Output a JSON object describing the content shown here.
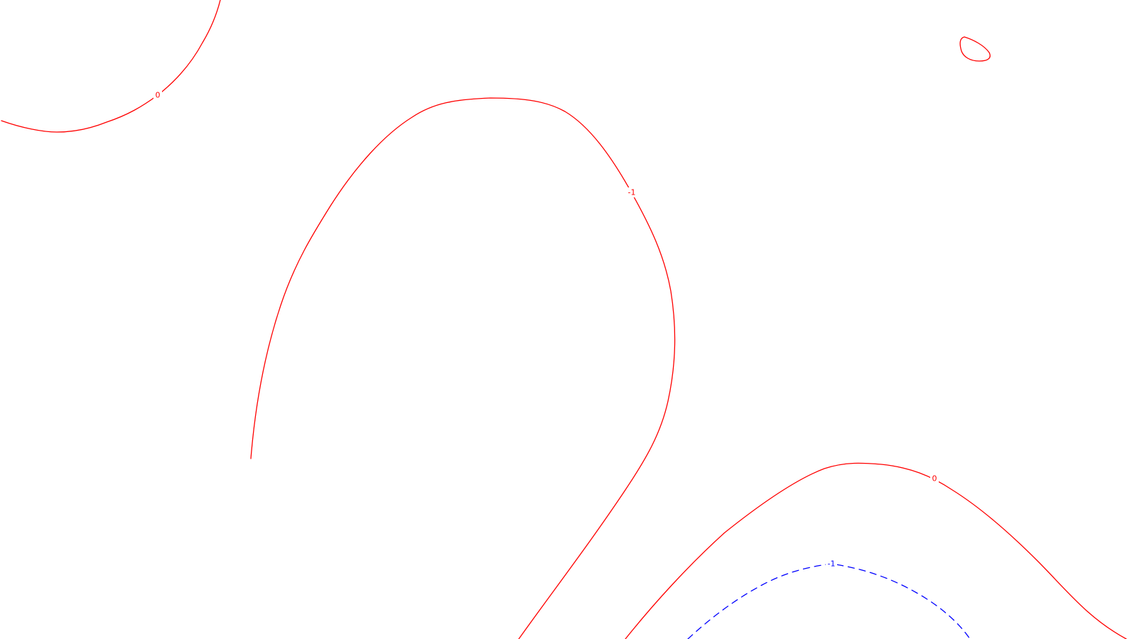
{
  "map": {
    "background": "#ffffff",
    "styles": {
      "positive": {
        "color": "#ff0000",
        "dash": "solid"
      },
      "negative": {
        "color": "#0000ff",
        "dash": "dashed"
      }
    },
    "contours": [
      {
        "id": "contour-0-top-left",
        "level": "0",
        "style": "positive"
      },
      {
        "id": "contour-1-center",
        "level": "-1",
        "style": "positive"
      },
      {
        "id": "contour-0-bottom-right",
        "level": "0",
        "style": "positive"
      },
      {
        "id": "contour-closed-top-right",
        "level": "",
        "style": "positive"
      },
      {
        "id": "contour-neg1-bottom",
        "level": "-1",
        "style": "negative"
      }
    ]
  }
}
